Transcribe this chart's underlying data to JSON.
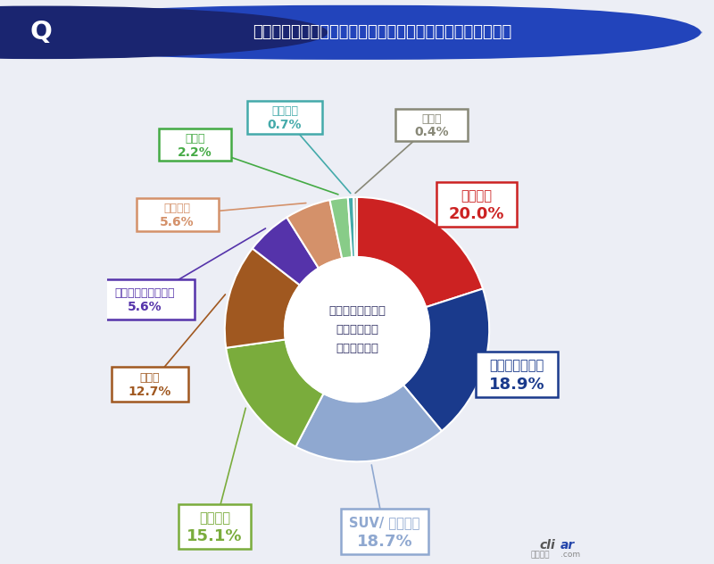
{
  "title": "購入・買い替えを検討しているボディタイプはどれですか？",
  "center_text": "購入・買い替えを\n検討している\nボディタイプ",
  "slices": [
    {
      "label": "軽自動車",
      "pct": 20.0,
      "color": "#cc2222"
    },
    {
      "label": "コンパクトカー",
      "pct": 18.9,
      "color": "#1a3a8c"
    },
    {
      "label": "SUV/ クロカン",
      "pct": 18.7,
      "color": "#8fa8d0"
    },
    {
      "label": "ミニバン",
      "pct": 15.1,
      "color": "#7aac3c"
    },
    {
      "label": "セダン",
      "pct": 12.7,
      "color": "#a05820"
    },
    {
      "label": "ステーションワゴン",
      "pct": 5.6,
      "color": "#5533aa"
    },
    {
      "label": "特にない",
      "pct": 5.6,
      "color": "#d4916a"
    },
    {
      "label": "クーペ",
      "pct": 2.2,
      "color": "#88cc88"
    },
    {
      "label": "オープン",
      "pct": 0.7,
      "color": "#44aaaa"
    },
    {
      "label": "その他",
      "pct": 0.4,
      "color": "#bbbbaa"
    }
  ],
  "header_bg": "#2244bb",
  "header_text_color": "#ffffff",
  "bg_color": "#eceef5",
  "labels_ext": [
    {
      "idx": 0,
      "label": "軽自動車",
      "pct_str": "20.0%",
      "bx": 0.74,
      "by": 0.72,
      "edge": "#cc2222",
      "tc": "#cc2222",
      "large": true,
      "bw": 0.16,
      "bh": 0.09
    },
    {
      "idx": 1,
      "label": "コンパクトカー",
      "pct_str": "18.9%",
      "bx": 0.82,
      "by": 0.38,
      "edge": "#1a3a8c",
      "tc": "#1a3a8c",
      "large": true,
      "bw": 0.165,
      "bh": 0.09
    },
    {
      "idx": 2,
      "label": "SUV/ クロカン",
      "pct_str": "18.7%",
      "bx": 0.555,
      "by": 0.065,
      "edge": "#8fa8d0",
      "tc": "#8fa8d0",
      "large": true,
      "bw": 0.175,
      "bh": 0.09
    },
    {
      "idx": 3,
      "label": "ミニバン",
      "pct_str": "15.1%",
      "bx": 0.215,
      "by": 0.075,
      "edge": "#7aac3c",
      "tc": "#7aac3c",
      "large": true,
      "bw": 0.145,
      "bh": 0.09
    },
    {
      "idx": 4,
      "label": "セダン",
      "pct_str": "12.7%",
      "bx": 0.085,
      "by": 0.36,
      "edge": "#a05820",
      "tc": "#a05820",
      "large": false,
      "bw": 0.155,
      "bh": 0.07
    },
    {
      "idx": 5,
      "label": "ステーションワゴン",
      "pct_str": "5.6%",
      "bx": 0.075,
      "by": 0.53,
      "edge": "#5533aa",
      "tc": "#5533aa",
      "large": false,
      "bw": 0.2,
      "bh": 0.08
    },
    {
      "idx": 6,
      "label": "特にない",
      "pct_str": "5.6%",
      "bx": 0.14,
      "by": 0.7,
      "edge": "#d4916a",
      "tc": "#d4916a",
      "large": false,
      "bw": 0.165,
      "bh": 0.065
    },
    {
      "idx": 7,
      "label": "クーペ",
      "pct_str": "2.2%",
      "bx": 0.175,
      "by": 0.84,
      "edge": "#44aa44",
      "tc": "#44aa44",
      "large": false,
      "bw": 0.145,
      "bh": 0.065
    },
    {
      "idx": 8,
      "label": "オープン",
      "pct_str": "0.7%",
      "bx": 0.355,
      "by": 0.895,
      "edge": "#44aaaa",
      "tc": "#44aaaa",
      "large": false,
      "bw": 0.15,
      "bh": 0.065
    },
    {
      "idx": 9,
      "label": "その他",
      "pct_str": "0.4%",
      "bx": 0.65,
      "by": 0.88,
      "edge": "#888877",
      "tc": "#888877",
      "large": false,
      "bw": 0.145,
      "bh": 0.065
    }
  ]
}
